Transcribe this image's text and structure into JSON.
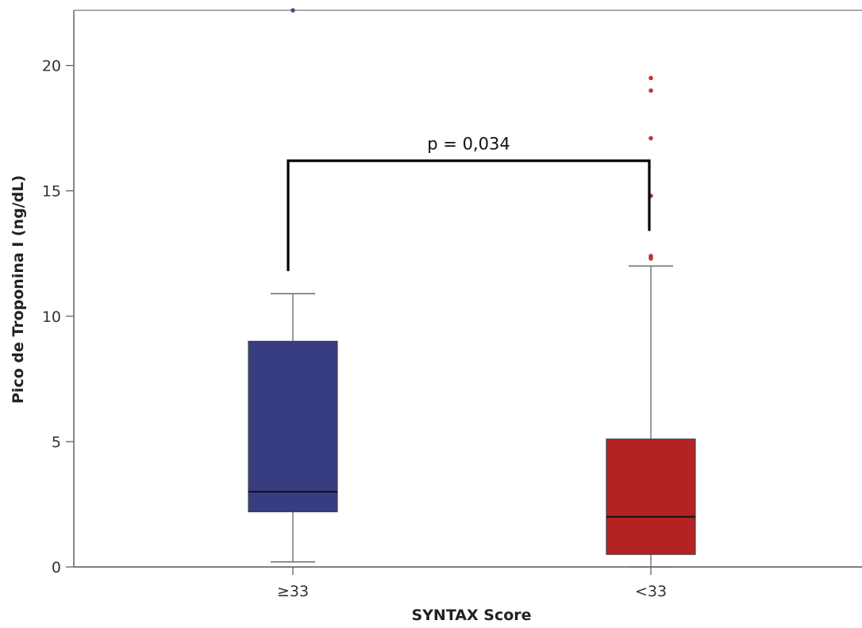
{
  "chart_data": {
    "type": "box",
    "xlabel": "SYNTAX Score",
    "ylabel": "Pico de Troponina I (ng/dL)",
    "ylim": [
      0,
      22.2
    ],
    "yticks": [
      0,
      5,
      10,
      15,
      20
    ],
    "grid": false,
    "groups": [
      {
        "label": "≥33",
        "color": "#373d80",
        "min": 0.2,
        "q1": 2.2,
        "median": 3.0,
        "q3": 9.0,
        "max": 10.9,
        "outliers": [
          22.2
        ]
      },
      {
        "label": "<33",
        "color": "#b42324",
        "min": 0.0,
        "q1": 0.5,
        "median": 2.0,
        "q3": 5.1,
        "max": 12.0,
        "outliers": [
          12.3,
          12.4,
          14.8,
          17.1,
          19.0,
          19.5
        ]
      }
    ],
    "annotation": {
      "text": "p = 0,034",
      "bracket_y": 16.2,
      "left_drop_to": 11.8,
      "right_drop_to": 13.4
    }
  }
}
